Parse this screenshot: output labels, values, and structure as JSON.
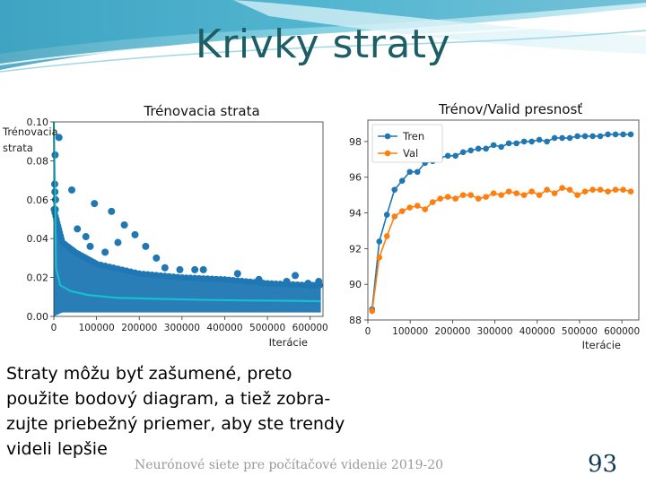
{
  "slide": {
    "title": "Krivky straty",
    "caption_lines": [
      "Straty môžu byť zašumené, preto",
      "použite bodový diagram, a tiež zobra-",
      "zujte priebežný priemer, aby ste trendy",
      "videli lepšie"
    ],
    "footer": "Neurónové siete pre počítačové videnie 2019-20",
    "page_number": "93"
  },
  "colors": {
    "title": "#1d5e66",
    "scatter": "#1f77b4",
    "running_mean": "#17becf",
    "train": "#1f77b4",
    "val": "#ff7f0e"
  },
  "chart_data": [
    {
      "type": "scatter",
      "title": "Trénovacia strata",
      "xlabel": "Iterácie",
      "ylabel": "Trénovacia strata",
      "xlim": [
        0,
        630000
      ],
      "ylim": [
        0,
        0.1
      ],
      "xticks": [
        0,
        100000,
        200000,
        300000,
        400000,
        500000,
        600000
      ],
      "yticks": [
        0.0,
        0.02,
        0.04,
        0.06,
        0.08,
        0.1
      ],
      "xtick_labels": [
        "0",
        "100000",
        "200000",
        "300000",
        "400000",
        "500000",
        "600000"
      ],
      "ytick_labels": [
        "0.00",
        "0.02",
        "0.04",
        "0.06",
        "0.08",
        "0.10"
      ],
      "outliers": [
        {
          "x": 3000,
          "y": 0.083
        },
        {
          "x": 2000,
          "y": 0.068
        },
        {
          "x": 2500,
          "y": 0.064
        },
        {
          "x": 4000,
          "y": 0.06
        },
        {
          "x": 3500,
          "y": 0.055
        },
        {
          "x": 12000,
          "y": 0.092
        },
        {
          "x": 42000,
          "y": 0.065
        },
        {
          "x": 75000,
          "y": 0.041
        },
        {
          "x": 95000,
          "y": 0.058
        },
        {
          "x": 55000,
          "y": 0.045
        },
        {
          "x": 135000,
          "y": 0.054
        },
        {
          "x": 85000,
          "y": 0.036
        },
        {
          "x": 165000,
          "y": 0.047
        },
        {
          "x": 190000,
          "y": 0.042
        },
        {
          "x": 215000,
          "y": 0.036
        },
        {
          "x": 240000,
          "y": 0.03
        },
        {
          "x": 260000,
          "y": 0.025
        },
        {
          "x": 295000,
          "y": 0.024
        },
        {
          "x": 330000,
          "y": 0.024
        },
        {
          "x": 350000,
          "y": 0.024
        },
        {
          "x": 430000,
          "y": 0.022
        },
        {
          "x": 480000,
          "y": 0.019
        },
        {
          "x": 545000,
          "y": 0.018
        },
        {
          "x": 565000,
          "y": 0.021
        },
        {
          "x": 595000,
          "y": 0.017
        },
        {
          "x": 620000,
          "y": 0.018
        },
        {
          "x": 120000,
          "y": 0.033
        },
        {
          "x": 150000,
          "y": 0.038
        }
      ],
      "band": {
        "x": [
          0,
          20000,
          50000,
          100000,
          200000,
          300000,
          400000,
          500000,
          600000,
          625000
        ],
        "upper": [
          0.055,
          0.038,
          0.033,
          0.027,
          0.022,
          0.02,
          0.019,
          0.017,
          0.016,
          0.016
        ],
        "lower": [
          0.0,
          0.002,
          0.002,
          0.002,
          0.002,
          0.002,
          0.002,
          0.002,
          0.002,
          0.002
        ]
      },
      "running_mean": {
        "x": [
          0,
          5000,
          15000,
          40000,
          80000,
          150000,
          250000,
          350000,
          450000,
          550000,
          625000
        ],
        "y": [
          0.1,
          0.025,
          0.016,
          0.013,
          0.011,
          0.0095,
          0.009,
          0.0085,
          0.0082,
          0.008,
          0.0078
        ]
      }
    },
    {
      "type": "line",
      "title": "Trénov/Valid presnosť",
      "xlabel": "Iterácie",
      "xlim": [
        0,
        640000
      ],
      "ylim": [
        88,
        99.2
      ],
      "xticks": [
        0,
        100000,
        200000,
        300000,
        400000,
        500000,
        600000
      ],
      "yticks": [
        88,
        90,
        92,
        94,
        96,
        98
      ],
      "xtick_labels": [
        "0",
        "100000",
        "200000",
        "300000",
        "400000",
        "500000",
        "600000"
      ],
      "ytick_labels": [
        "88",
        "90",
        "92",
        "94",
        "96",
        "98"
      ],
      "legend_position": "top-left",
      "series": [
        {
          "name": "Tren",
          "x": [
            10000,
            27000,
            45000,
            63000,
            81000,
            99000,
            117000,
            135000,
            153000,
            171000,
            189000,
            207000,
            225000,
            243000,
            261000,
            279000,
            297000,
            315000,
            333000,
            351000,
            369000,
            387000,
            405000,
            423000,
            441000,
            459000,
            477000,
            495000,
            513000,
            531000,
            549000,
            567000,
            585000,
            603000,
            621000
          ],
          "y": [
            88.6,
            92.4,
            93.9,
            95.3,
            95.8,
            96.3,
            96.3,
            96.8,
            96.9,
            97.1,
            97.2,
            97.2,
            97.4,
            97.5,
            97.6,
            97.6,
            97.8,
            97.7,
            97.9,
            97.9,
            98.0,
            98.0,
            98.1,
            98.0,
            98.2,
            98.2,
            98.2,
            98.3,
            98.3,
            98.3,
            98.3,
            98.4,
            98.4,
            98.4,
            98.4
          ]
        },
        {
          "name": "Val",
          "x": [
            10000,
            27000,
            45000,
            63000,
            81000,
            99000,
            117000,
            135000,
            153000,
            171000,
            189000,
            207000,
            225000,
            243000,
            261000,
            279000,
            297000,
            315000,
            333000,
            351000,
            369000,
            387000,
            405000,
            423000,
            441000,
            459000,
            477000,
            495000,
            513000,
            531000,
            549000,
            567000,
            585000,
            603000,
            621000
          ],
          "y": [
            88.5,
            91.5,
            92.7,
            93.8,
            94.1,
            94.3,
            94.4,
            94.2,
            94.6,
            94.8,
            94.9,
            94.8,
            95.0,
            95.0,
            94.8,
            94.9,
            95.1,
            95.0,
            95.2,
            95.1,
            95.0,
            95.2,
            95.0,
            95.3,
            95.1,
            95.4,
            95.3,
            95.0,
            95.2,
            95.3,
            95.3,
            95.2,
            95.3,
            95.3,
            95.2
          ]
        }
      ]
    }
  ]
}
